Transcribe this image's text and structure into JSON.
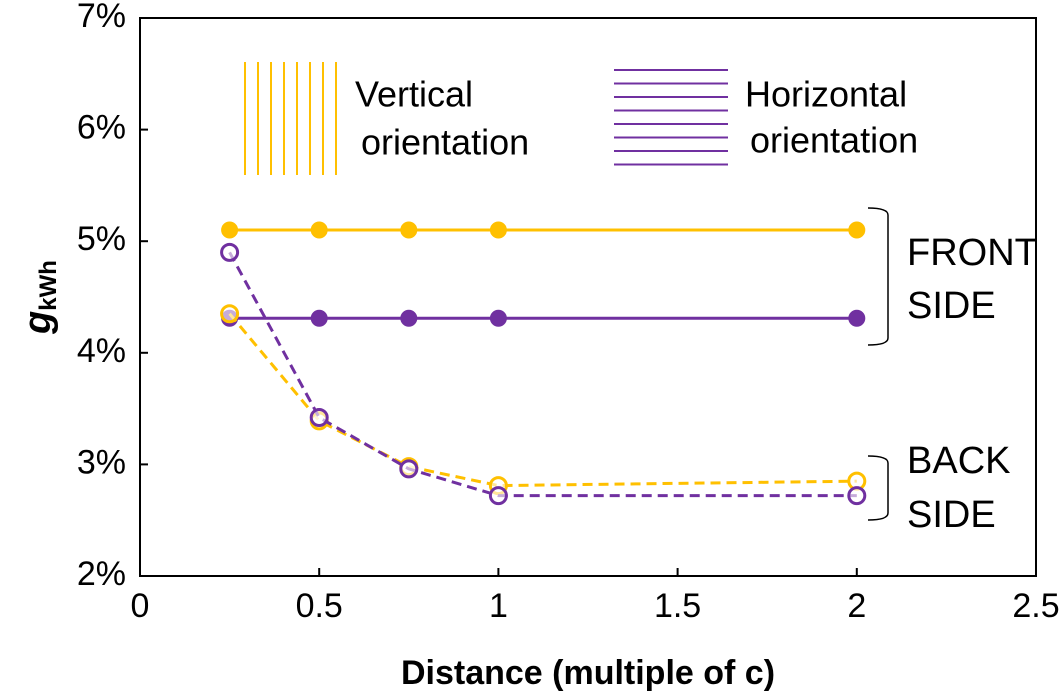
{
  "chart_data": {
    "type": "line",
    "x": [
      0.25,
      0.5,
      0.75,
      1,
      2
    ],
    "series": [
      {
        "color": "#ffc000",
        "dashed": false,
        "filled": true,
        "values": [
          5.1,
          5.1,
          5.1,
          5.1,
          5.1
        ]
      },
      {
        "color": "#7030a0",
        "dashed": false,
        "filled": true,
        "values": [
          4.31,
          4.31,
          4.31,
          4.31,
          4.31
        ]
      },
      {
        "color": "#ffc000",
        "dashed": true,
        "filled": false,
        "values": [
          4.35,
          3.39,
          2.98,
          2.81,
          2.85
        ]
      },
      {
        "color": "#7030a0",
        "dashed": true,
        "filled": false,
        "values": [
          4.9,
          3.42,
          2.96,
          2.72,
          2.72
        ]
      }
    ],
    "legend": [
      {
        "lines": [
          "Vertical",
          "orientation"
        ],
        "color": "#ffc000",
        "pattern": "vertical"
      },
      {
        "lines": [
          "Horizontal",
          "orientation"
        ],
        "color": "#7030a0",
        "pattern": "horizontal"
      }
    ],
    "annotations": [
      [
        "FRONT",
        "SIDE"
      ],
      [
        "BACK",
        "SIDE"
      ]
    ],
    "xlabel": "Distance (multiple of c)",
    "ylabel": "g",
    "ylabel_sub": "kWh",
    "xlim": [
      0,
      2.5
    ],
    "xticks": [
      0,
      0.5,
      1,
      1.5,
      2,
      2.5
    ],
    "ylim": [
      2,
      7
    ],
    "yticks": [
      {
        "value": 2,
        "label": "2%"
      },
      {
        "value": 3,
        "label": "3%"
      },
      {
        "value": 4,
        "label": "4%"
      },
      {
        "value": 5,
        "label": "5%"
      },
      {
        "value": 6,
        "label": "6%"
      },
      {
        "value": 7,
        "label": "7%"
      }
    ]
  }
}
